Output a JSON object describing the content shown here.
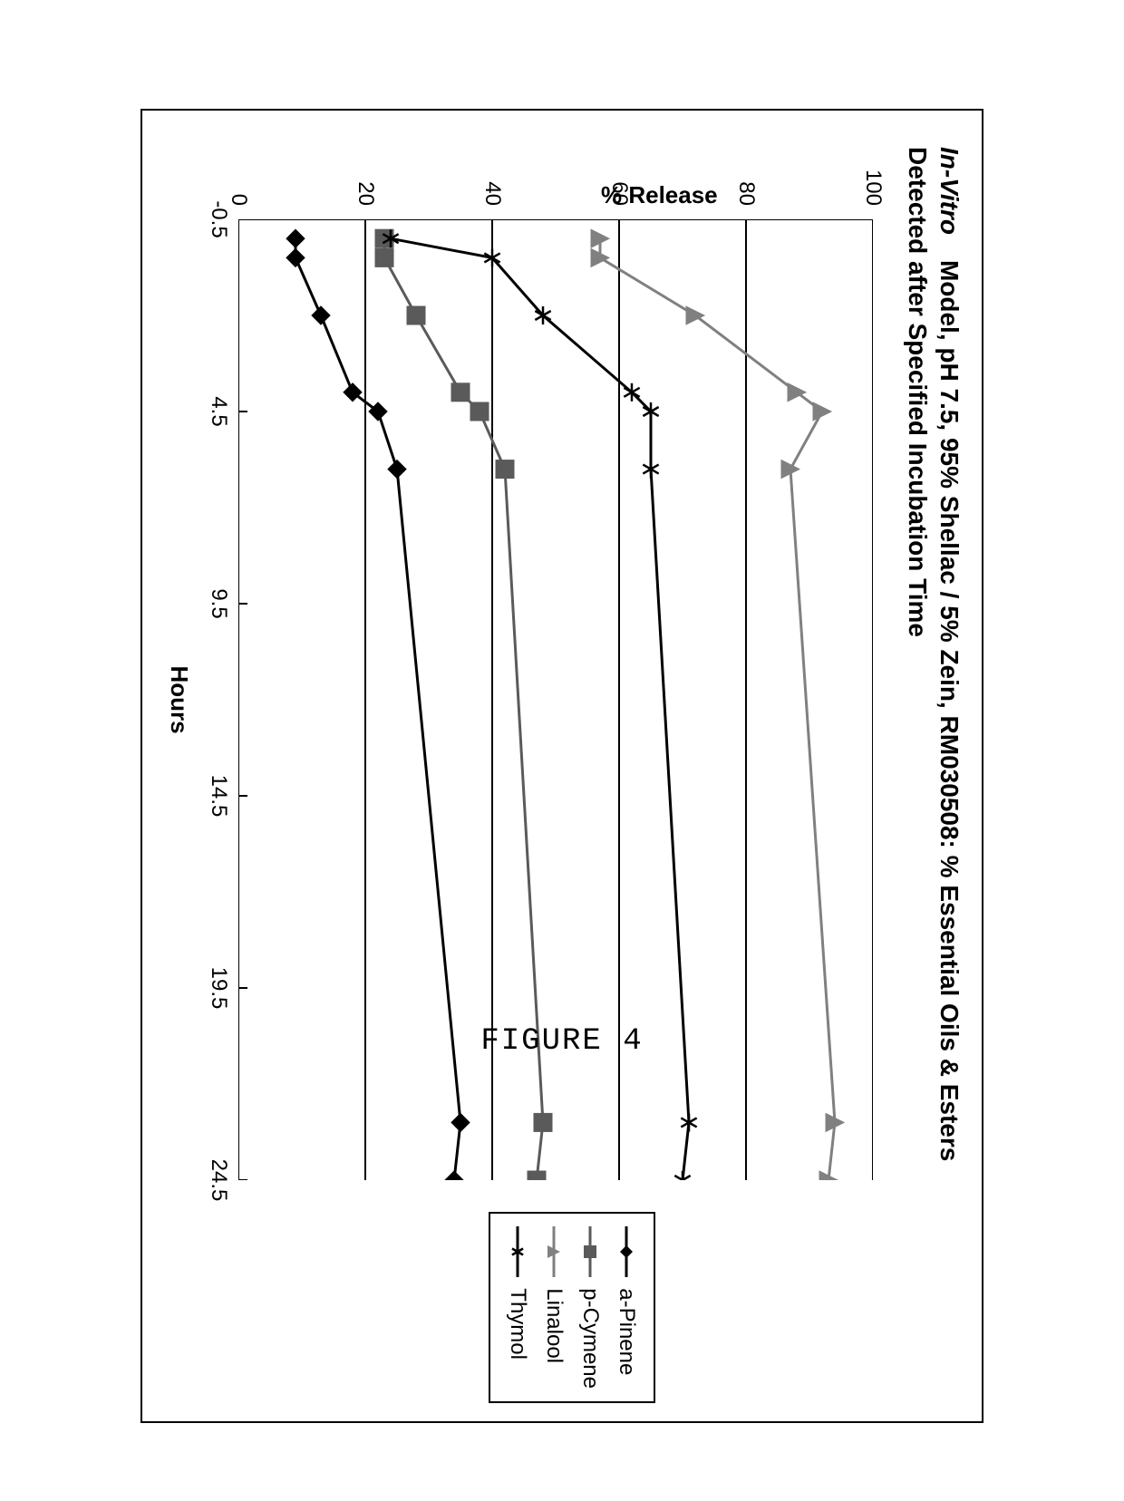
{
  "figure_caption": "FIGURE 4",
  "chart": {
    "type": "line",
    "title_html": "<span class='ital'>In-Vitro</span> Model, pH 7.5, 95% Shellac / 5% Zein, RM030508: % Essential Oils & Esters Detected after Specified Incubation Time",
    "xlabel": "Hours",
    "ylabel": "% Release",
    "xlim": [
      -0.5,
      24.5
    ],
    "ylim": [
      0,
      100
    ],
    "xticks": [
      -0.5,
      4.5,
      9.5,
      14.5,
      19.5,
      24.5
    ],
    "yticks": [
      0,
      20,
      40,
      60,
      80,
      100
    ],
    "grid_y": [
      20,
      40,
      60,
      80
    ],
    "grid_color": "#000000",
    "axis_color": "#000000",
    "background": "#ffffff",
    "title_fontsize": 28,
    "label_fontsize": 26,
    "tick_fontsize": 24,
    "line_width": 3,
    "marker_size": 10,
    "series": [
      {
        "name": "a-Pinene",
        "marker": "diamond",
        "color": "#000000",
        "x": [
          0,
          0.5,
          2.0,
          4.0,
          4.5,
          6.0,
          23.0,
          24.5
        ],
        "y": [
          9,
          9,
          13,
          18,
          22,
          25,
          35,
          34
        ]
      },
      {
        "name": "p-Cymene",
        "marker": "square",
        "color": "#5a5a5a",
        "x": [
          0,
          0.5,
          2.0,
          4.0,
          4.5,
          6.0,
          23.0,
          24.5
        ],
        "y": [
          23,
          23,
          28,
          35,
          38,
          42,
          48,
          47
        ]
      },
      {
        "name": "Linalool",
        "marker": "triangle",
        "color": "#808080",
        "x": [
          0,
          0.5,
          2.0,
          4.0,
          4.5,
          6.0,
          23.0,
          24.5
        ],
        "y": [
          57,
          57,
          72,
          88,
          92,
          87,
          94,
          93
        ]
      },
      {
        "name": "Thymol",
        "marker": "star",
        "color": "#000000",
        "x": [
          0,
          0.5,
          2.0,
          4.0,
          4.5,
          6.0,
          23.0,
          24.5
        ],
        "y": [
          24,
          40,
          48,
          62,
          65,
          65,
          71,
          70
        ]
      }
    ],
    "legend_order": [
      "a-Pinene",
      "p-Cymene",
      "Linalool",
      "Thymol"
    ]
  }
}
